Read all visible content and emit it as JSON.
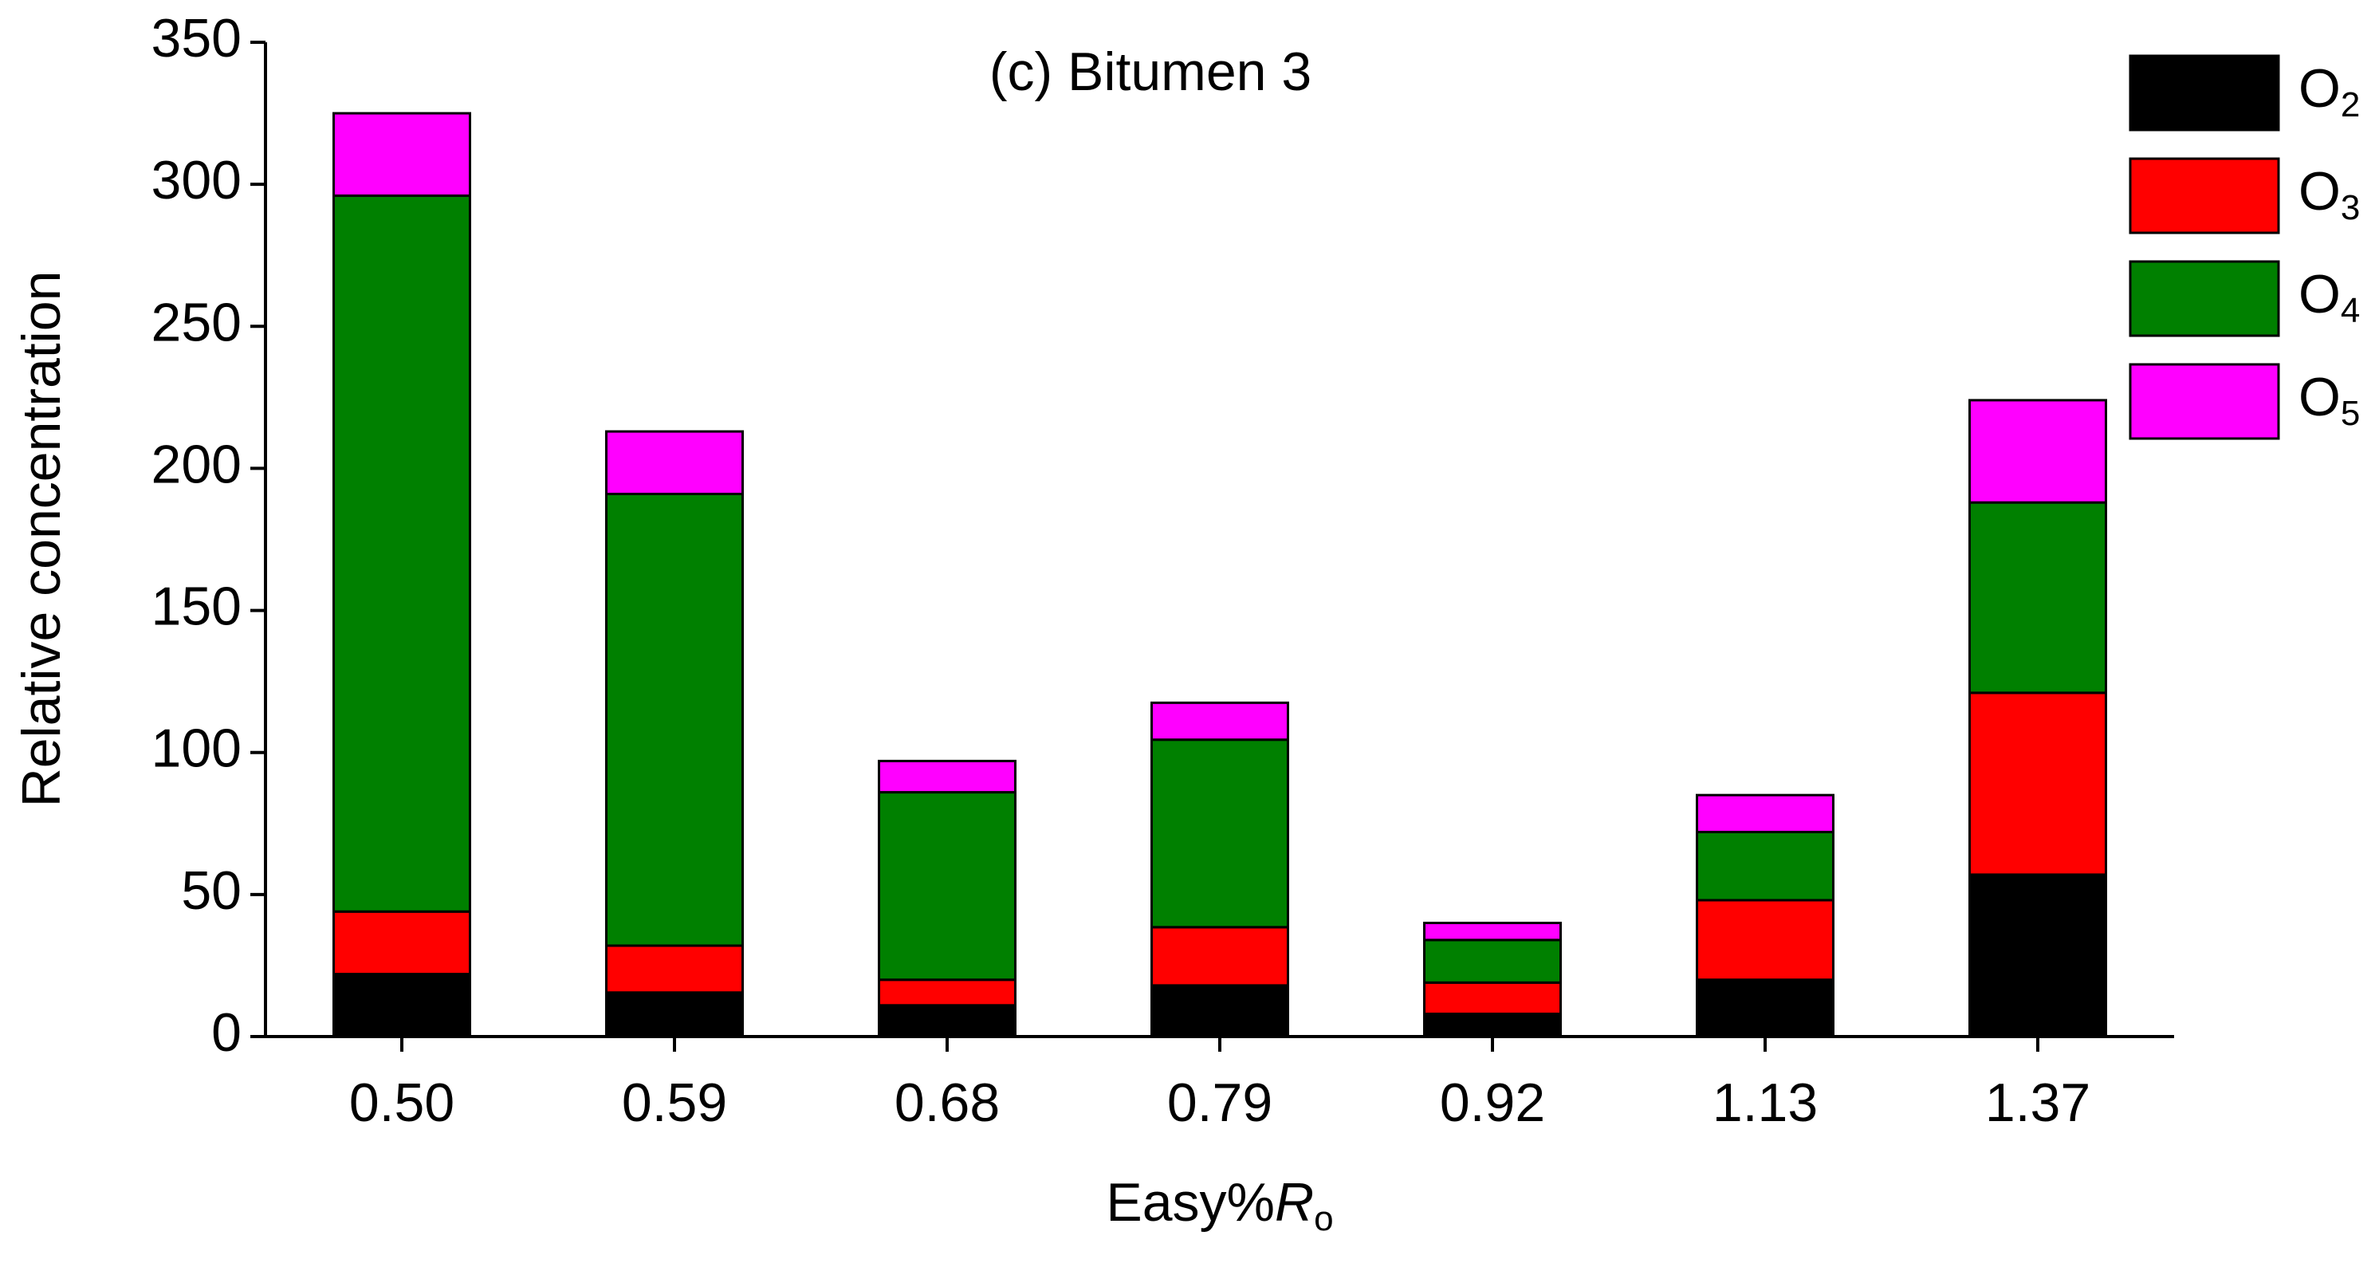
{
  "chart_data": {
    "type": "stacked_bar",
    "title": "(c) Bitumen 3",
    "x_label": "Easy%Ro",
    "y_label": "Relative concentration",
    "categories": [
      "0.50",
      "0.59",
      "0.68",
      "0.79",
      "0.92",
      "1.13",
      "1.37"
    ],
    "series": [
      {
        "name": "O2",
        "color": "#000000",
        "values": [
          22,
          15.5,
          11,
          18,
          8,
          20,
          57
        ]
      },
      {
        "name": "O3",
        "color": "#ff0000",
        "values": [
          22,
          16.5,
          9,
          20.5,
          11,
          28,
          64
        ]
      },
      {
        "name": "O4",
        "color": "#008000",
        "values": [
          252,
          159,
          66,
          66,
          15,
          24,
          67
        ]
      },
      {
        "name": "O5",
        "color": "#ff00ff",
        "values": [
          29,
          22,
          11,
          13,
          6,
          13,
          36
        ]
      }
    ],
    "ylim": [
      0,
      350
    ],
    "yticks": [
      0,
      50,
      100,
      150,
      200,
      250,
      300,
      350
    ],
    "legend": "upper right"
  }
}
